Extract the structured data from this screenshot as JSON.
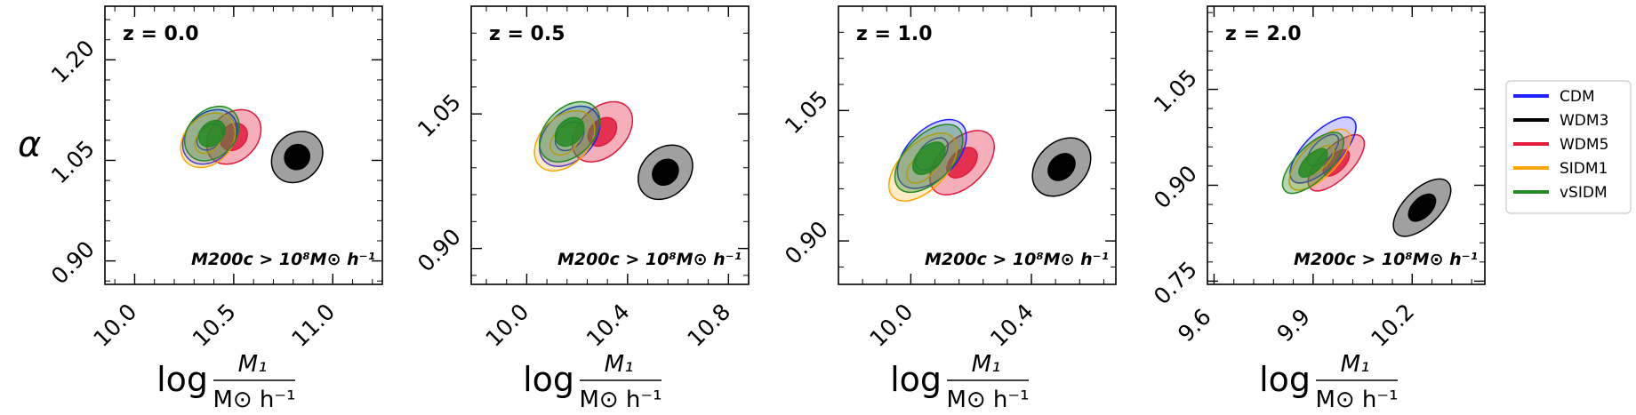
{
  "chart_data": {
    "type": "contour",
    "legend": {
      "placement": "right",
      "entries": [
        {
          "name": "CDM",
          "color": "#1f1fff"
        },
        {
          "name": "WDM3",
          "color": "#000000"
        },
        {
          "name": "WDM5",
          "color": "#e31a3c"
        },
        {
          "name": "SIDM1",
          "color": "#ffa500"
        },
        {
          "name": "vSIDM",
          "color": "#228b22"
        }
      ]
    },
    "ylabel": "α",
    "xlabel_parts": {
      "prefix": "log",
      "numerator": "M₁",
      "denominator": "M⊙ h⁻¹"
    },
    "annotation": "M200c > 10⁸M⊙ h⁻¹",
    "panels": [
      {
        "title": "z = 0.0",
        "annotation": "M200c > 10⁸M⊙ h⁻¹",
        "xlim": [
          9.85,
          11.25
        ],
        "ylim": [
          0.865,
          1.28
        ],
        "xticks": [
          10.0,
          10.5,
          11.0
        ],
        "xtick_labels": [
          "10.0",
          "10.5",
          "11.0"
        ],
        "yticks": [
          0.9,
          1.05,
          1.2
        ],
        "ytick_labels": [
          "0.90",
          "1.05",
          "1.20"
        ],
        "contours": [
          {
            "model": "WDM3",
            "center": [
              10.82,
              1.055
            ],
            "outer": [
              0.14,
              0.105
            ],
            "inner": [
              0.065,
              0.055
            ],
            "outline": "full",
            "filled_inner": true
          },
          {
            "model": "WDM5",
            "center": [
              10.5,
              1.085
            ],
            "outer": [
              0.155,
              0.105
            ],
            "inner": [
              0.075,
              0.055
            ],
            "outline": "full",
            "filled_inner": true
          },
          {
            "model": "CDM",
            "center": [
              10.38,
              1.085
            ],
            "outer": [
              0.155,
              0.105
            ],
            "inner": [
              0.075,
              0.05
            ],
            "outline": "full",
            "filled_inner": false
          },
          {
            "model": "SIDM1",
            "center": [
              10.37,
              1.08
            ],
            "outer": [
              0.155,
              0.105
            ],
            "inner": [
              0.075,
              0.05
            ],
            "outline": "full",
            "filled_inner": false
          },
          {
            "model": "vSIDM",
            "center": [
              10.39,
              1.09
            ],
            "outer": [
              0.155,
              0.105
            ],
            "inner": [
              0.075,
              0.05
            ],
            "outline": "full",
            "filled_inner": true
          }
        ]
      },
      {
        "title": "z = 0.5",
        "annotation": "M200c > 10⁸M⊙ h⁻¹",
        "xlim": [
          9.78,
          10.88
        ],
        "ylim": [
          0.86,
          1.17
        ],
        "xticks": [
          10.0,
          10.4,
          10.8
        ],
        "xtick_labels": [
          "10.0",
          "10.4",
          "10.8"
        ],
        "yticks": [
          0.9,
          1.05
        ],
        "ytick_labels": [
          "0.90",
          "1.05"
        ],
        "contours": [
          {
            "model": "WDM3",
            "center": [
              10.55,
              0.985
            ],
            "outer": [
              0.12,
              0.08
            ],
            "inner": [
              0.055,
              0.04
            ],
            "outline": "full",
            "filled_inner": true
          },
          {
            "model": "WDM5",
            "center": [
              10.3,
              1.03
            ],
            "outer": [
              0.14,
              0.08
            ],
            "inner": [
              0.065,
              0.04
            ],
            "outline": "full",
            "filled_inner": true
          },
          {
            "model": "CDM",
            "center": [
              10.17,
              1.025
            ],
            "outer": [
              0.14,
              0.08
            ],
            "inner": [
              0.065,
              0.04
            ],
            "outline": "full",
            "filled_inner": false
          },
          {
            "model": "SIDM1",
            "center": [
              10.15,
              1.02
            ],
            "outer": [
              0.14,
              0.08
            ],
            "inner": [
              0.065,
              0.04
            ],
            "outline": "full",
            "filled_inner": false
          },
          {
            "model": "vSIDM",
            "center": [
              10.17,
              1.03
            ],
            "outer": [
              0.14,
              0.08
            ],
            "inner": [
              0.065,
              0.04
            ],
            "outline": "full",
            "filled_inner": true
          }
        ]
      },
      {
        "title": "z = 1.0",
        "annotation": "M200c > 10⁸M⊙ h⁻¹",
        "xlim": [
          9.76,
          10.68
        ],
        "ylim": [
          0.85,
          1.17
        ],
        "xticks": [
          10.0,
          10.4
        ],
        "xtick_labels": [
          "10.0",
          "10.4"
        ],
        "yticks": [
          0.9,
          1.05
        ],
        "ytick_labels": [
          "0.90",
          "1.05"
        ],
        "contours": [
          {
            "model": "WDM3",
            "center": [
              10.5,
              0.985
            ],
            "outer": [
              0.11,
              0.085
            ],
            "inner": [
              0.05,
              0.04
            ],
            "outline": "full",
            "filled_inner": true
          },
          {
            "model": "WDM5",
            "center": [
              10.17,
              0.99
            ],
            "outer": [
              0.13,
              0.08
            ],
            "inner": [
              0.06,
              0.04
            ],
            "outline": "full",
            "filled_inner": true
          },
          {
            "model": "CDM",
            "center": [
              10.07,
              1.0
            ],
            "outer": [
              0.14,
              0.085
            ],
            "inner": [
              0.065,
              0.04
            ],
            "outline": "full",
            "filled_inner": false
          },
          {
            "model": "SIDM1",
            "center": [
              10.04,
              0.985
            ],
            "outer": [
              0.14,
              0.08
            ],
            "inner": [
              0.065,
              0.04
            ],
            "outline": "full",
            "filled_inner": false
          },
          {
            "model": "vSIDM",
            "center": [
              10.06,
              0.995
            ],
            "outer": [
              0.14,
              0.08
            ],
            "inner": [
              0.065,
              0.04
            ],
            "outline": "full",
            "filled_inner": true
          }
        ]
      },
      {
        "title": "z = 2.0",
        "annotation": "M200c > 10⁸M⊙ h⁻¹",
        "xlim": [
          9.58,
          10.42
        ],
        "ylim": [
          0.745,
          1.18
        ],
        "xticks": [
          9.6,
          9.9,
          10.2
        ],
        "xtick_labels": [
          "9.6",
          "9.9",
          "10.2"
        ],
        "yticks": [
          0.75,
          0.9,
          1.05
        ],
        "ytick_labels": [
          "0.75",
          "0.90",
          "1.05"
        ],
        "contours": [
          {
            "model": "WDM3",
            "center": [
              10.23,
              0.865
            ],
            "outer": [
              0.11,
              0.085
            ],
            "inner": [
              0.05,
              0.045
            ],
            "outline": "full",
            "filled_inner": true
          },
          {
            "model": "WDM5",
            "center": [
              9.97,
              0.935
            ],
            "outer": [
              0.11,
              0.075
            ],
            "inner": [
              0.05,
              0.04
            ],
            "outline": "full",
            "filled_inner": true
          },
          {
            "model": "CDM",
            "center": [
              9.93,
              0.955
            ],
            "outer": [
              0.13,
              0.085
            ],
            "inner": [
              0.06,
              0.045
            ],
            "outline": "full",
            "filled_inner": false
          },
          {
            "model": "SIDM1",
            "center": [
              9.92,
              0.94
            ],
            "outer": [
              0.12,
              0.08
            ],
            "inner": [
              0.055,
              0.04
            ],
            "outline": "full",
            "filled_inner": false
          },
          {
            "model": "vSIDM",
            "center": [
              9.9,
              0.935
            ],
            "outer": [
              0.12,
              0.08
            ],
            "inner": [
              0.055,
              0.04
            ],
            "outline": "full",
            "filled_inner": true
          }
        ]
      }
    ]
  }
}
